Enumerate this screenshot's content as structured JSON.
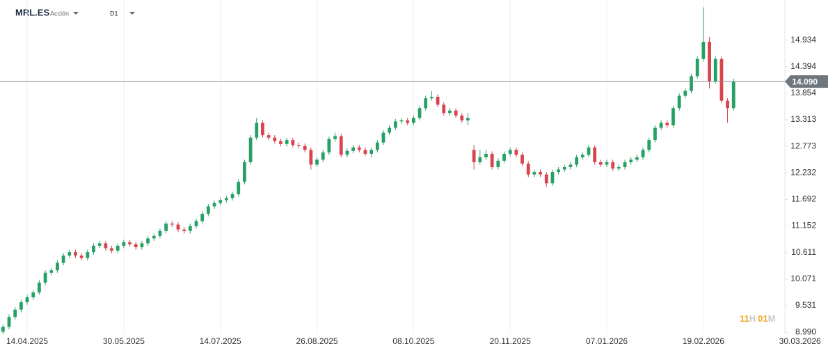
{
  "chart_data": {
    "type": "candlestick",
    "symbol": "MRL.ES",
    "asset_type": "Acción",
    "timeframe": "D1",
    "countdown": {
      "hours": "11",
      "hours_unit": "H",
      "minutes": "01",
      "minutes_unit": "M"
    },
    "last_price": {
      "value": 14.09,
      "label": "14.090"
    },
    "up_color": "#26a065",
    "down_color": "#d9434e",
    "xlim": [
      -0.5,
      129.5
    ],
    "xticks": [
      {
        "value": 4,
        "label": "14.04.2025"
      },
      {
        "value": 20,
        "label": "30.05.2025"
      },
      {
        "value": 36,
        "label": "14.07.2025"
      },
      {
        "value": 52,
        "label": "26.08.2025"
      },
      {
        "value": 68,
        "label": "08.10.2025"
      },
      {
        "value": 84,
        "label": "20.11.2025"
      },
      {
        "value": 100,
        "label": "07.01.2026"
      },
      {
        "value": 116,
        "label": "19.02.2026"
      },
      {
        "value": 132,
        "label": "30.03.2026"
      }
    ],
    "ylim": [
      8.95,
      15.75
    ],
    "yticks": [
      {
        "value": 8.99,
        "label": "8.990"
      },
      9.531,
      10.071,
      10.611,
      11.152,
      11.692,
      12.232,
      12.773,
      13.313,
      13.854,
      14.394,
      14.934
    ],
    "grid_x": true,
    "open": [
      9.0,
      9.1,
      9.3,
      9.45,
      9.6,
      9.7,
      9.8,
      10.0,
      10.2,
      10.25,
      10.4,
      10.55,
      10.62,
      10.55,
      10.5,
      10.62,
      10.75,
      10.8,
      10.7,
      10.65,
      10.75,
      10.82,
      10.78,
      10.72,
      10.8,
      10.9,
      10.95,
      11.05,
      11.2,
      11.18,
      11.08,
      11.05,
      11.15,
      11.25,
      11.4,
      11.55,
      11.62,
      11.68,
      11.72,
      11.8,
      12.05,
      12.45,
      12.95,
      13.25,
      13.0,
      12.95,
      12.88,
      12.82,
      12.9,
      12.8,
      12.78,
      12.7,
      12.4,
      12.5,
      12.65,
      12.92,
      12.98,
      12.6,
      12.68,
      12.75,
      12.7,
      12.62,
      12.7,
      12.85,
      13.05,
      13.15,
      13.28,
      13.3,
      13.25,
      13.35,
      13.55,
      13.75,
      13.78,
      13.62,
      13.45,
      13.5,
      13.4,
      13.3,
      12.7,
      12.45,
      12.55,
      12.62,
      12.35,
      12.48,
      12.62,
      12.7,
      12.6,
      12.42,
      12.2,
      12.25,
      12.2,
      12.02,
      12.25,
      12.3,
      12.35,
      12.4,
      12.55,
      12.6,
      12.75,
      12.45,
      12.4,
      12.45,
      12.32,
      12.35,
      12.45,
      12.5,
      12.55,
      12.7,
      12.9,
      13.15,
      13.25,
      13.2,
      13.55,
      13.8,
      13.9,
      14.2,
      14.55,
      14.9,
      14.1,
      14.55,
      13.7,
      13.55
    ],
    "high": [
      9.15,
      9.35,
      9.5,
      9.65,
      9.75,
      9.85,
      10.05,
      10.25,
      10.3,
      10.45,
      10.6,
      10.67,
      10.67,
      10.6,
      10.67,
      10.8,
      10.85,
      10.85,
      10.75,
      10.8,
      10.87,
      10.87,
      10.83,
      10.85,
      10.95,
      11.0,
      11.1,
      11.25,
      11.25,
      11.23,
      11.13,
      11.2,
      11.3,
      11.45,
      11.6,
      11.67,
      11.73,
      11.77,
      11.85,
      12.1,
      12.5,
      13.0,
      13.35,
      13.3,
      13.05,
      13.0,
      12.93,
      12.95,
      12.95,
      12.85,
      12.83,
      12.75,
      12.55,
      12.7,
      12.97,
      13.05,
      13.03,
      12.73,
      12.8,
      12.8,
      12.75,
      12.75,
      12.9,
      13.1,
      13.2,
      13.33,
      13.35,
      13.35,
      13.4,
      13.6,
      13.8,
      13.9,
      13.83,
      13.67,
      13.55,
      13.55,
      13.45,
      13.45,
      12.8,
      12.7,
      12.7,
      12.67,
      12.53,
      12.67,
      12.75,
      12.75,
      12.65,
      12.47,
      12.3,
      12.3,
      12.25,
      12.3,
      12.35,
      12.4,
      12.45,
      12.6,
      12.65,
      12.8,
      12.8,
      12.5,
      12.5,
      12.5,
      12.4,
      12.5,
      12.55,
      12.6,
      12.75,
      12.95,
      13.2,
      13.3,
      13.3,
      13.6,
      13.85,
      13.95,
      14.25,
      14.6,
      15.6,
      15.0,
      14.6,
      14.6,
      13.75,
      14.15
    ],
    "low": [
      8.95,
      9.05,
      9.25,
      9.4,
      9.55,
      9.65,
      9.75,
      9.95,
      10.15,
      10.2,
      10.35,
      10.5,
      10.5,
      10.45,
      10.45,
      10.57,
      10.7,
      10.65,
      10.6,
      10.6,
      10.7,
      10.73,
      10.67,
      10.67,
      10.75,
      10.85,
      10.9,
      11.0,
      11.13,
      11.03,
      11.0,
      11.0,
      11.1,
      11.2,
      11.35,
      11.5,
      11.57,
      11.63,
      11.67,
      11.75,
      12.0,
      12.4,
      12.9,
      12.95,
      12.9,
      12.83,
      12.77,
      12.77,
      12.75,
      12.73,
      12.65,
      12.3,
      12.35,
      12.45,
      12.6,
      12.87,
      12.55,
      12.55,
      12.63,
      12.65,
      12.57,
      12.55,
      12.65,
      12.8,
      13.0,
      13.1,
      13.23,
      13.2,
      13.2,
      13.3,
      13.5,
      13.7,
      13.57,
      13.4,
      13.4,
      13.35,
      13.25,
      13.2,
      12.3,
      12.4,
      12.5,
      12.3,
      12.3,
      12.43,
      12.57,
      12.55,
      12.37,
      12.15,
      12.15,
      12.15,
      11.95,
      11.97,
      12.2,
      12.25,
      12.3,
      12.35,
      12.5,
      12.55,
      12.4,
      12.35,
      12.35,
      12.27,
      12.27,
      12.3,
      12.4,
      12.45,
      12.5,
      12.65,
      12.85,
      13.1,
      13.15,
      13.15,
      13.5,
      13.75,
      13.85,
      14.15,
      14.5,
      13.95,
      14.05,
      13.65,
      13.25,
      13.5
    ],
    "close": [
      9.1,
      9.3,
      9.45,
      9.6,
      9.7,
      9.8,
      10.0,
      10.2,
      10.25,
      10.4,
      10.55,
      10.62,
      10.55,
      10.5,
      10.62,
      10.75,
      10.8,
      10.7,
      10.65,
      10.75,
      10.82,
      10.78,
      10.72,
      10.8,
      10.9,
      10.95,
      11.05,
      11.2,
      11.18,
      11.08,
      11.05,
      11.15,
      11.25,
      11.4,
      11.55,
      11.62,
      11.68,
      11.72,
      11.8,
      12.05,
      12.45,
      12.95,
      13.25,
      13.0,
      12.95,
      12.88,
      12.82,
      12.9,
      12.8,
      12.78,
      12.7,
      12.4,
      12.5,
      12.65,
      12.92,
      12.98,
      12.6,
      12.68,
      12.75,
      12.7,
      12.62,
      12.7,
      12.85,
      13.05,
      13.15,
      13.28,
      13.3,
      13.25,
      13.35,
      13.55,
      13.75,
      13.78,
      13.62,
      13.45,
      13.5,
      13.4,
      13.3,
      13.35,
      12.45,
      12.55,
      12.62,
      12.35,
      12.48,
      12.62,
      12.7,
      12.6,
      12.42,
      12.2,
      12.25,
      12.2,
      12.02,
      12.25,
      12.3,
      12.35,
      12.4,
      12.55,
      12.6,
      12.75,
      12.45,
      12.4,
      12.45,
      12.32,
      12.35,
      12.45,
      12.5,
      12.55,
      12.7,
      12.9,
      13.15,
      13.25,
      13.2,
      13.55,
      13.8,
      13.9,
      14.2,
      14.55,
      14.9,
      14.1,
      14.55,
      13.7,
      13.55,
      14.09
    ]
  }
}
